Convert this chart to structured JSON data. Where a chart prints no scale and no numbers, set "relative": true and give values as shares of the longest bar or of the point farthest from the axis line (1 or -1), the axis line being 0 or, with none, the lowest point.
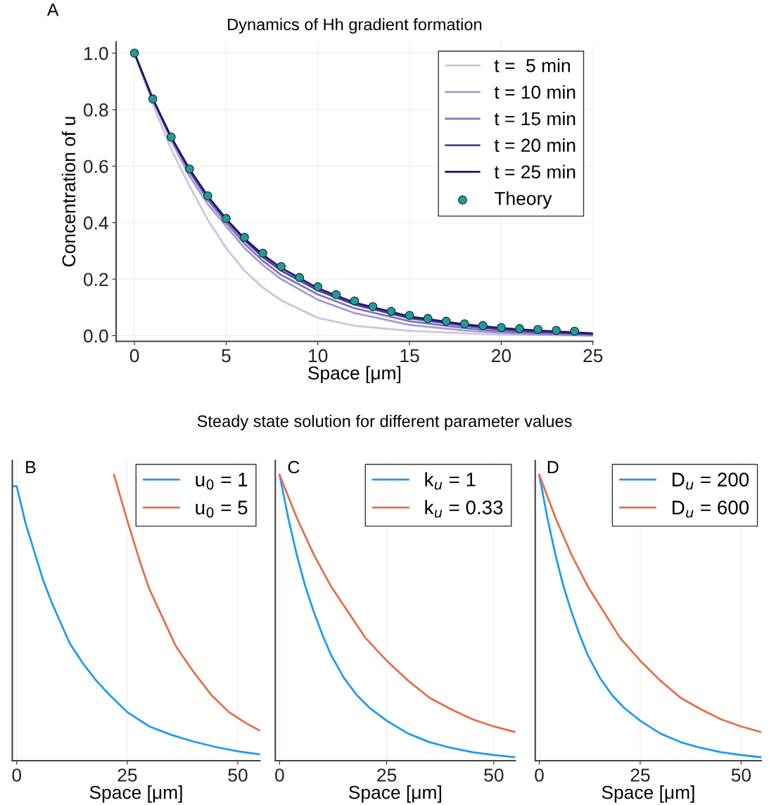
{
  "chart_data": [
    {
      "type": "line",
      "title": "Dynamics of Hh gradient formation",
      "xlabel": "Space [μm]",
      "ylabel": "Concentration of u",
      "annotations": [
        "A"
      ],
      "xlim": [
        -1,
        25
      ],
      "xticks": [
        0,
        5,
        10,
        15,
        20,
        25
      ],
      "ylim": [
        -0.02,
        1.04
      ],
      "yticks": [
        {
          "value": 0,
          "label": "0.0"
        },
        {
          "value": 0.2,
          "label": "0.2"
        },
        {
          "value": 0.4,
          "label": "0.4"
        },
        {
          "value": 0.6,
          "label": "0.6"
        },
        {
          "value": 0.8,
          "label": "0.8"
        },
        {
          "value": 1,
          "label": "1.0"
        }
      ],
      "grid": true,
      "legend": "top right",
      "series": [
        {
          "name": "t =  5 min",
          "color": "#c9c5e3",
          "x": [
            0,
            1,
            2,
            3,
            4,
            5,
            6,
            7,
            8,
            10,
            12,
            15,
            18,
            20,
            22,
            25
          ],
          "values": [
            1.0,
            0.82,
            0.66,
            0.53,
            0.41,
            0.31,
            0.23,
            0.17,
            0.125,
            0.063,
            0.035,
            0.017,
            0.008,
            0.004,
            0.002,
            0.0
          ]
        },
        {
          "name": "t = 10 min",
          "color": "#a29bd0",
          "x": [
            0,
            1,
            2,
            3,
            4,
            5,
            6,
            7,
            8,
            10,
            12,
            15,
            18,
            20,
            22,
            25
          ],
          "values": [
            1.0,
            0.835,
            0.69,
            0.565,
            0.465,
            0.387,
            0.31,
            0.25,
            0.2,
            0.127,
            0.08,
            0.038,
            0.018,
            0.01,
            0.005,
            0.0
          ]
        },
        {
          "name": "t = 15 min",
          "color": "#7d72bc",
          "x": [
            0,
            1,
            2,
            3,
            4,
            5,
            6,
            7,
            8,
            10,
            12,
            15,
            18,
            20,
            22,
            25
          ],
          "values": [
            1.0,
            0.837,
            0.7,
            0.58,
            0.48,
            0.4,
            0.325,
            0.265,
            0.215,
            0.146,
            0.097,
            0.051,
            0.027,
            0.015,
            0.009,
            0.003
          ]
        },
        {
          "name": "t = 20 min",
          "color": "#4b3ea0",
          "x": [
            0,
            1,
            2,
            3,
            4,
            5,
            6,
            7,
            8,
            10,
            12,
            15,
            18,
            20,
            22,
            25
          ],
          "values": [
            1.0,
            0.838,
            0.702,
            0.587,
            0.49,
            0.41,
            0.338,
            0.278,
            0.23,
            0.16,
            0.11,
            0.062,
            0.035,
            0.022,
            0.014,
            0.006
          ]
        },
        {
          "name": "t = 25 min",
          "color": "#1f1670",
          "x": [
            0,
            1,
            2,
            3,
            4,
            5,
            6,
            7,
            8,
            10,
            12,
            15,
            18,
            20,
            22,
            25
          ],
          "values": [
            1.0,
            0.838,
            0.703,
            0.59,
            0.494,
            0.413,
            0.344,
            0.287,
            0.24,
            0.168,
            0.117,
            0.068,
            0.04,
            0.027,
            0.018,
            0.008
          ]
        },
        {
          "name": "Theory",
          "type": "scatter",
          "marker": "circle",
          "color": "#1b9e9a",
          "x": [
            0,
            1,
            2,
            3,
            4,
            5,
            6,
            7,
            8,
            9,
            10,
            11,
            12,
            13,
            14,
            15,
            16,
            17,
            18,
            19,
            20,
            21,
            22,
            23,
            24
          ],
          "values": [
            1.0,
            0.838,
            0.703,
            0.59,
            0.495,
            0.415,
            0.348,
            0.292,
            0.245,
            0.206,
            0.173,
            0.145,
            0.123,
            0.103,
            0.086,
            0.072,
            0.061,
            0.051,
            0.042,
            0.036,
            0.029,
            0.025,
            0.022,
            0.019,
            0.016
          ]
        }
      ]
    },
    {
      "type": "line",
      "relative": true,
      "xlabel": "Space [μm]",
      "annotations": [
        "B"
      ],
      "xlim": [
        -1,
        55
      ],
      "xticks": [
        0,
        25,
        50
      ],
      "grid": "x",
      "legend": "top right",
      "series": [
        {
          "name": "u$_{0}$ = 1",
          "color": "#1f9af0",
          "x": [
            -1,
            0,
            2,
            4,
            6,
            8,
            10,
            12,
            15,
            18,
            21,
            25,
            30,
            35,
            40,
            45,
            50,
            55
          ],
          "values": [
            0.96,
            0.96,
            0.83,
            0.73,
            0.63,
            0.55,
            0.48,
            0.41,
            0.34,
            0.28,
            0.23,
            0.17,
            0.12,
            0.09,
            0.067,
            0.048,
            0.033,
            0.022
          ]
        },
        {
          "name": "u$_{0}$ = 5",
          "color": "#e36f47",
          "x": [
            22,
            25,
            28,
            30,
            33,
            36,
            40,
            44,
            48,
            52,
            55
          ],
          "values": [
            1.0,
            0.84,
            0.69,
            0.6,
            0.5,
            0.4,
            0.31,
            0.23,
            0.17,
            0.13,
            0.105
          ]
        }
      ]
    },
    {
      "type": "line",
      "relative": true,
      "title": "Steady state solution for different parameter values",
      "xlabel": "Space [μm]",
      "annotations": [
        "C"
      ],
      "xlim": [
        -1,
        55
      ],
      "xticks": [
        0,
        25,
        50
      ],
      "grid": "x",
      "legend": "top right",
      "series": [
        {
          "name": "k$_{u}$ = 1",
          "color": "#1f9af0",
          "x": [
            0,
            2,
            4,
            6,
            8,
            10,
            12,
            15,
            18,
            21,
            25,
            30,
            35,
            40,
            45,
            50,
            55
          ],
          "values": [
            1.0,
            0.85,
            0.72,
            0.61,
            0.52,
            0.44,
            0.37,
            0.29,
            0.23,
            0.185,
            0.14,
            0.095,
            0.065,
            0.045,
            0.03,
            0.02,
            0.012
          ]
        },
        {
          "name": "k$_{u}$ = 0.33",
          "color": "#e36f47",
          "x": [
            0,
            4,
            8,
            12,
            16,
            20,
            25,
            30,
            35,
            40,
            45,
            50,
            55
          ],
          "values": [
            1.0,
            0.85,
            0.72,
            0.61,
            0.52,
            0.43,
            0.35,
            0.28,
            0.22,
            0.18,
            0.145,
            0.12,
            0.1
          ]
        }
      ]
    },
    {
      "type": "line",
      "relative": true,
      "xlabel": "Space [μm]",
      "annotations": [
        "D"
      ],
      "xlim": [
        -1,
        55
      ],
      "xticks": [
        0,
        25,
        50
      ],
      "grid": "x",
      "legend": "top right",
      "series": [
        {
          "name": "D$_{u}$ = 200",
          "color": "#1f9af0",
          "x": [
            0,
            2,
            4,
            6,
            8,
            10,
            12,
            15,
            18,
            21,
            25,
            30,
            35,
            40,
            45,
            50,
            55
          ],
          "values": [
            1.0,
            0.85,
            0.72,
            0.61,
            0.52,
            0.44,
            0.37,
            0.29,
            0.23,
            0.185,
            0.14,
            0.095,
            0.065,
            0.045,
            0.03,
            0.02,
            0.012
          ]
        },
        {
          "name": "D$_{u}$ = 600",
          "color": "#e36f47",
          "x": [
            0,
            4,
            8,
            12,
            16,
            20,
            25,
            30,
            35,
            40,
            45,
            50,
            55
          ],
          "values": [
            1.0,
            0.85,
            0.72,
            0.61,
            0.52,
            0.43,
            0.35,
            0.28,
            0.22,
            0.18,
            0.145,
            0.12,
            0.1
          ]
        }
      ]
    }
  ]
}
